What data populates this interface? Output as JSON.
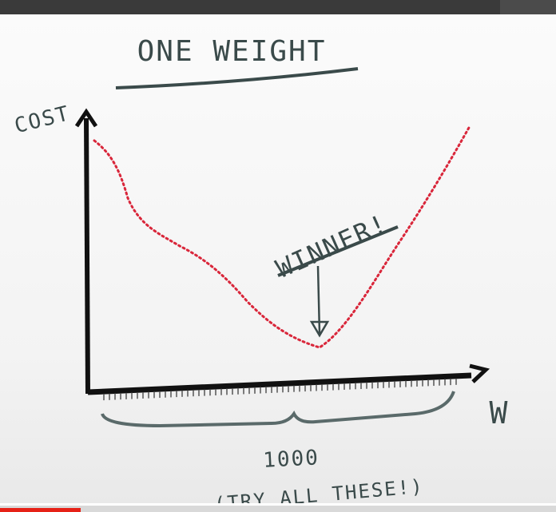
{
  "title": "ONE WEIGHT",
  "y_axis_label": "COST",
  "x_axis_label": "W",
  "annotation": "WINNER!",
  "count_label": "1000",
  "note": "(TRY ALL THESE!)",
  "video": {
    "progress": 0.145
  },
  "colors": {
    "ink": "#3a4a4a",
    "axis": "#111111",
    "curve": "#d9263a",
    "progress": "#e62117"
  }
}
